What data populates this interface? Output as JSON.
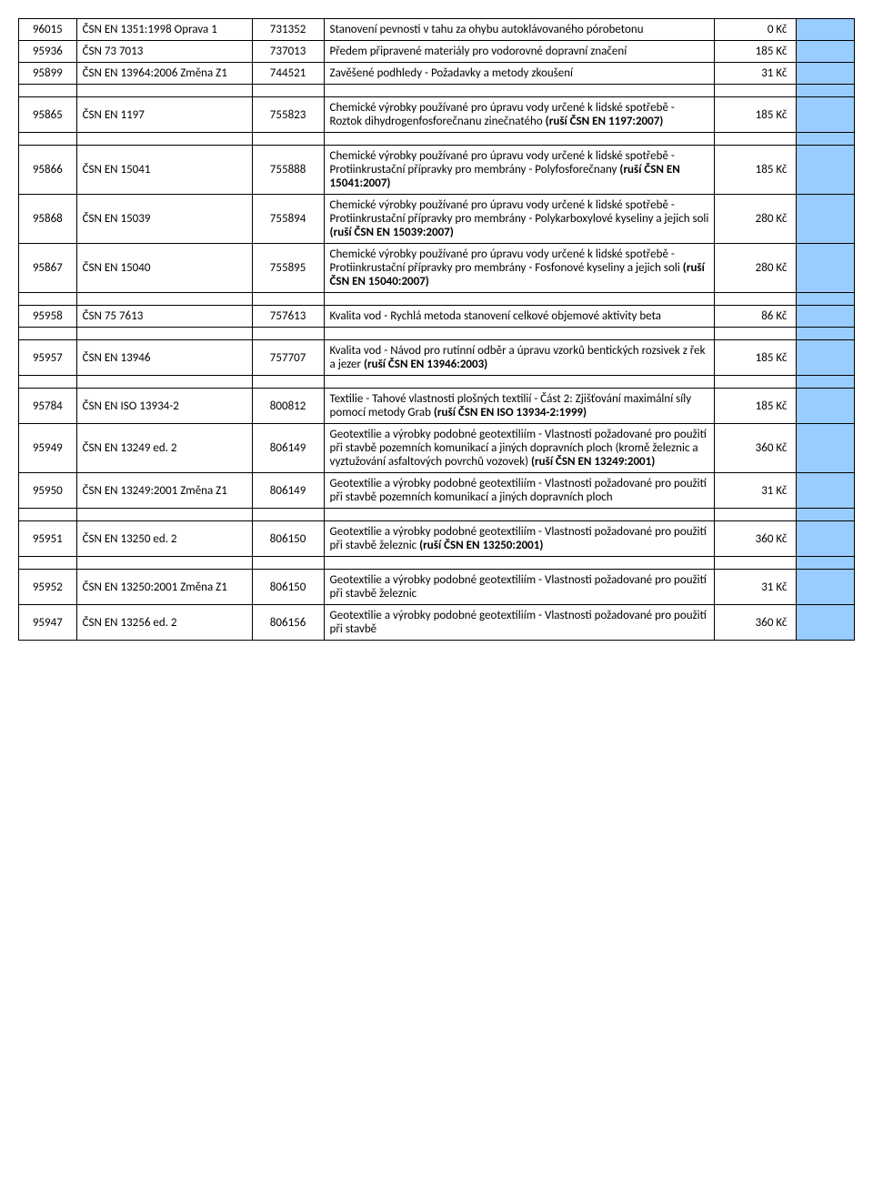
{
  "colors": {
    "blue_cell": "#99ccff",
    "border": "#000000",
    "bg": "#ffffff"
  },
  "fonts": {
    "base_size": 13,
    "family": "Calibri, Arial, sans-serif"
  },
  "col_widths": {
    "a": 58,
    "b": 176,
    "c": 72,
    "d": 392,
    "e": 82,
    "f": 58
  },
  "rows": [
    {
      "a": "96015",
      "b": "ČSN EN 1351:1998 Oprava 1",
      "c": "731352",
      "d": "Stanovení pevnosti v tahu za ohybu autoklávovaného pórobetonu",
      "e": "0 Kč"
    },
    {
      "a": "95936",
      "b": "ČSN 73 7013",
      "c": "737013",
      "d": "Předem připravené materiály pro vodorovné dopravní značení",
      "e": "185 Kč"
    },
    {
      "a": "95899",
      "b": "ČSN EN 13964:2006 Změna Z1",
      "c": "744521",
      "d": "Zavěšené podhledy - Požadavky a metody zkoušení",
      "e": "31 Kč"
    },
    {
      "spacer": true
    },
    {
      "a": "95865",
      "b": "ČSN EN 1197",
      "c": "755823",
      "d": "Chemické výrobky používané pro úpravu vody určené k lidské spotřebě - Roztok dihydrogenfosforečnanu zinečnatého           <b>(ruší ČSN EN 1197:2007)</b>",
      "e": "185 Kč"
    },
    {
      "spacer": true
    },
    {
      "a": "95866",
      "b": "ČSN EN 15041",
      "c": "755888",
      "d": "Chemické výrobky používané pro úpravu vody určené k lidské spotřebě - Protiinkrustační přípravky pro membrány - Polyfosforečnany             <b>(ruší ČSN EN 15041:2007)</b>",
      "e": "185 Kč"
    },
    {
      "a": "95868",
      "b": "ČSN EN 15039",
      "c": "755894",
      "d": "Chemické výrobky používané pro úpravu vody určené k lidské spotřebě - Protiinkrustační přípravky pro membrány - Polykarboxylové kyseliny a jejich soli       <b>(ruší ČSN EN 15039:2007)</b>",
      "e": "280 Kč"
    },
    {
      "a": "95867",
      "b": "ČSN EN 15040",
      "c": "755895",
      "d": "Chemické výrobky používané pro úpravu vody určené k lidské spotřebě - Protiinkrustační přípravky pro membrány - Fosfonové kyseliny a jejich soli                <b>(ruší ČSN EN 15040:2007)</b>",
      "e": "280 Kč"
    },
    {
      "spacer": true
    },
    {
      "a": "95958",
      "b": "ČSN 75 7613",
      "c": "757613",
      "d": "Kvalita vod - Rychlá metoda stanovení celkové objemové aktivity beta",
      "e": "86 Kč"
    },
    {
      "spacer": true
    },
    {
      "a": "95957",
      "b": "ČSN EN 13946",
      "c": "757707",
      "d": "Kvalita vod - Návod pro rutinní odběr a úpravu vzorků bentických rozsivek z řek a jezer                  <b>(ruší ČSN EN 13946:2003)</b>",
      "e": "185 Kč"
    },
    {
      "spacer": true
    },
    {
      "a": "95784",
      "b": "ČSN EN ISO 13934-2",
      "c": "800812",
      "d": "Textilie - Tahové vlastnosti plošných textilií - Část 2: Zjišťování maximální síly pomocí metody Grab                          <b>(ruší ČSN EN ISO 13934-2:1999)</b>",
      "e": "185 Kč"
    },
    {
      "a": "95949",
      "b": "ČSN EN 13249 ed. 2",
      "c": "806149",
      "d": "Geotextilie a výrobky podobné geotextiliím - Vlastnosti požadované pro použití při stavbě pozemních komunikací a jiných dopravních ploch (kromě železnic a vyztužování asfaltových povrchů vozovek)                      <b>(ruší ČSN EN 13249:2001)</b>",
      "e": "360 Kč"
    },
    {
      "a": "95950",
      "b": "ČSN EN 13249:2001 Změna Z1",
      "c": "806149",
      "d": "Geotextilie a výrobky podobné geotextiliím - Vlastnosti požadované pro použití při stavbě pozemních komunikací a jiných dopravních ploch",
      "e": "31 Kč"
    },
    {
      "spacer": true
    },
    {
      "a": "95951",
      "b": "ČSN EN 13250 ed. 2",
      "c": "806150",
      "d": "Geotextilie a výrobky podobné geotextiliím - Vlastnosti požadované pro použití při stavbě železnic           <b>(ruší ČSN EN 13250:2001)</b>",
      "e": "360 Kč"
    },
    {
      "spacer": true
    },
    {
      "a": "95952",
      "b": "ČSN EN 13250:2001 Změna Z1",
      "c": "806150",
      "d": "Geotextilie a výrobky podobné geotextiliím - Vlastnosti požadované pro použití při stavbě železnic",
      "e": "31 Kč"
    },
    {
      "a": "95947",
      "b": "ČSN EN 13256 ed. 2",
      "c": "806156",
      "d": "Geotextilie a výrobky podobné geotextiliím - Vlastnosti požadované pro použití při stavbě",
      "e": "360 Kč"
    }
  ]
}
